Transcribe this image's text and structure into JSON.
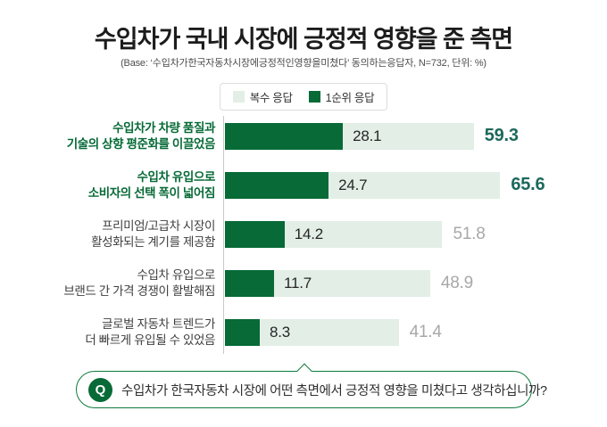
{
  "page": {
    "title": "수입차가 국내 시장에 긍정적 영향을 준 측면",
    "subtitle": "(Base: ‘수입차가한국자동차시장에긍정적인영향을미쳤다’ 동의하는응답자, N=732, 단위: %)"
  },
  "legend": {
    "multiple_label": "복수 응답",
    "first_label": "1순위 응답"
  },
  "colors": {
    "dark_green": "#076A37",
    "light_green": "#E2EEE6",
    "emphasis_value_teal": "#1C695B",
    "muted_value_gray": "#A8A8A8",
    "question_border_green": "#0E7A3F"
  },
  "chart_data": {
    "type": "bar",
    "orientation": "horizontal",
    "unit": "%",
    "base_n": 732,
    "title": "수입차가 국내 시장에 긍정적 영향을 준 측면",
    "categories": [
      "수입차가 차량 품질과 기술의 상향 평준화를 이끌었음",
      "수입차 유입으로 소비자의 선택 폭이 넓어짐",
      "프리미엄/고급차 시장이 활성화되는 계기를 제공함",
      "수입차 유입으로 브랜드 간 가격 경쟁이 활발해짐",
      "글로벌 자동차 트렌드가 더 빠르게 유입될 수 있었음"
    ],
    "series": [
      {
        "name": "복수 응답",
        "values": [
          59.3,
          65.6,
          51.8,
          48.9,
          41.4
        ]
      },
      {
        "name": "1순위 응답",
        "values": [
          28.1,
          24.7,
          14.2,
          11.7,
          8.3
        ]
      }
    ],
    "xlim": [
      0,
      70
    ],
    "legend_position": "top",
    "grid": false,
    "emphasized_rows": [
      0,
      1
    ]
  },
  "rows": [
    {
      "label_line1": "수입차가 차량 품질과",
      "label_line2": "기술의 상향 평준화를 이끌었음",
      "first": "28.1",
      "multiple": "59.3"
    },
    {
      "label_line1": "수입차 유입으로",
      "label_line2": "소비자의 선택 폭이 넓어짐",
      "first": "24.7",
      "multiple": "65.6"
    },
    {
      "label_line1": "프리미엄/고급차 시장이",
      "label_line2": "활성화되는 계기를 제공함",
      "first": "14.2",
      "multiple": "51.8"
    },
    {
      "label_line1": "수입차 유입으로",
      "label_line2": "브랜드 간 가격 경쟁이 활발해짐",
      "first": "11.7",
      "multiple": "48.9"
    },
    {
      "label_line1": "글로벌 자동차 트렌드가",
      "label_line2": "더 빠르게 유입될 수 있었음",
      "first": "8.3",
      "multiple": "41.4"
    }
  ],
  "question": {
    "icon_label": "Q",
    "text": "수입차가 한국자동차 시장에 어떤 측면에서 긍정적 영향을 미쳤다고 생각하십니까?"
  }
}
